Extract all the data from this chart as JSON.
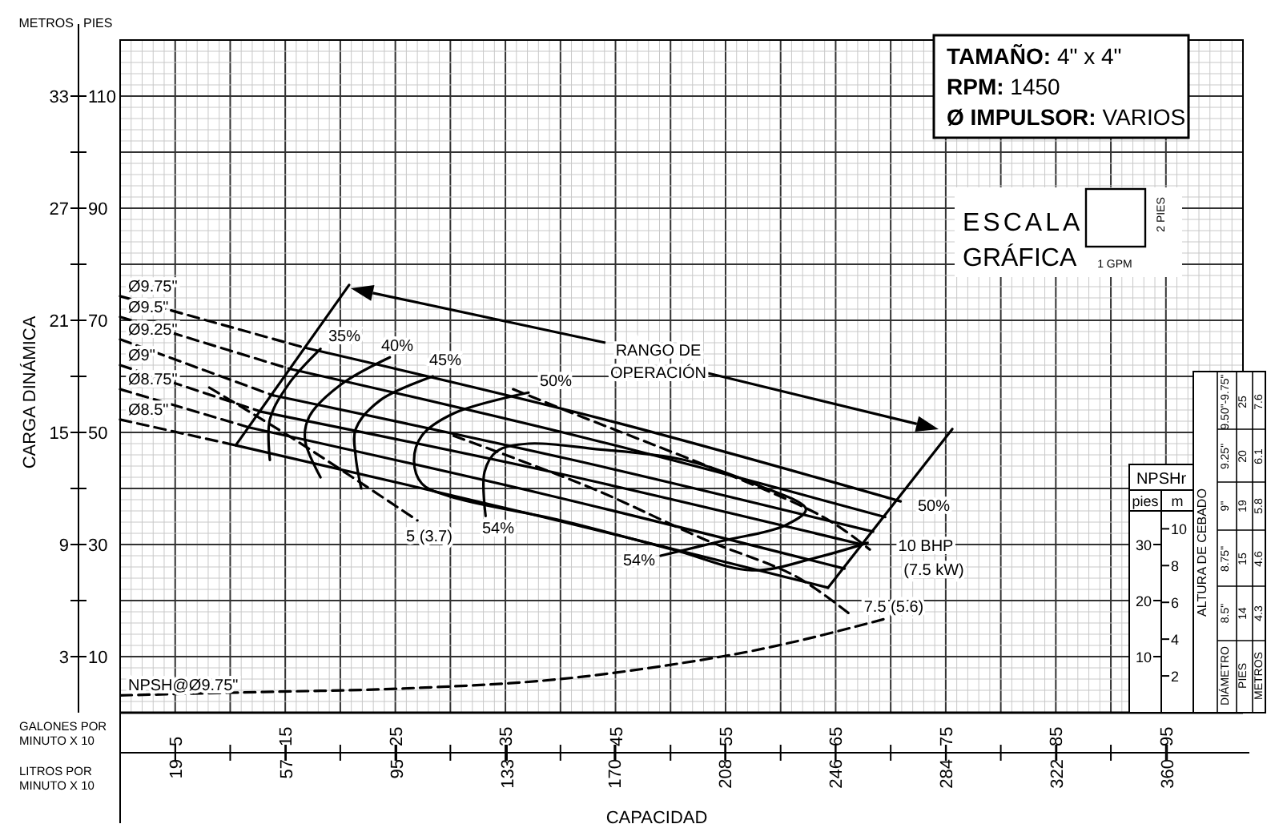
{
  "chart_data": {
    "type": "line",
    "xlabel": "CAPACIDAD",
    "y2label": "CARGA DINÁMICA",
    "y3label": "m",
    "xlim": [
      0,
      102
    ],
    "ylim": [
      0,
      120
    ],
    "x2lim": [
      0,
      386.1
    ],
    "y2lim": [
      0,
      36
    ],
    "y3lim": [
      0,
      36.58
    ],
    "xticks": [
      5,
      {
        "value": 10,
        "label": null
      },
      15,
      {
        "value": 20,
        "label": null
      },
      25,
      {
        "value": 30,
        "label": null
      },
      35,
      {
        "value": 40,
        "label": null
      },
      45,
      {
        "value": 50,
        "label": null
      },
      55,
      {
        "value": 60,
        "label": null
      },
      65,
      {
        "value": 70,
        "label": null
      },
      75,
      {
        "value": 80,
        "label": null
      },
      85,
      {
        "value": 90,
        "label": null
      },
      95
    ],
    "x2ticks": [
      19,
      57,
      95,
      133,
      170,
      208,
      246,
      284,
      322,
      360
    ],
    "yticks": [
      10,
      {
        "value": 20,
        "label": null
      },
      30,
      {
        "value": 40,
        "label": null
      },
      50,
      {
        "value": 60,
        "label": null
      },
      70,
      {
        "value": 80,
        "label": null
      },
      90,
      {
        "value": 100,
        "label": null
      },
      110
    ],
    "y2ticks": [
      3,
      9,
      15,
      21,
      27,
      33
    ],
    "y3ticks": [
      2,
      4,
      6,
      8,
      10
    ],
    "grid": true,
    "line_style": "solid",
    "series": [
      {
        "name": "Ø9.75\"",
        "line_style": "dashed",
        "color": "#000000",
        "x": [
          0,
          16.8
        ],
        "values": [
          74.3,
          65.1
        ]
      },
      {
        "name": "Ø9.5\"",
        "line_style": "dashed",
        "color": "#000000",
        "x": [
          0,
          15.3
        ],
        "values": [
          70.6,
          61.4
        ]
      },
      {
        "name": "Ø9.25\"",
        "line_style": "dashed",
        "color": "#000000",
        "x": [
          0,
          13.9
        ],
        "values": [
          66.6,
          56.6
        ]
      },
      {
        "name": "Ø9\"",
        "line_style": "dashed",
        "color": "#000000",
        "x": [
          0,
          12.8
        ],
        "values": [
          62.0,
          53.7
        ]
      },
      {
        "name": "Ø8.75\"",
        "line_style": "dashed",
        "color": "#000000",
        "x": [
          0,
          11.7
        ],
        "values": [
          57.7,
          50.9
        ]
      },
      {
        "name": "Ø8.5\"",
        "line_style": "dashed",
        "color": "#000000",
        "x": [
          0,
          10.5
        ],
        "values": [
          52.3,
          47.7
        ]
      },
      {
        "color": "#000000",
        "x": [
          16.8,
          44,
          70.9
        ],
        "values": [
          65.1,
          52.3,
          37.7
        ]
      },
      {
        "color": "#000000",
        "x": [
          15.3,
          42.5,
          69.5
        ],
        "values": [
          61.4,
          48.9,
          34.9
        ]
      },
      {
        "color": "#000000",
        "x": [
          13.9,
          41.1,
          68.4
        ],
        "values": [
          56.6,
          45.1,
          32.3
        ]
      },
      {
        "color": "#000000",
        "x": [
          12.8,
          40.0,
          67.4
        ],
        "values": [
          53.7,
          42.6,
          30.0
        ]
      },
      {
        "color": "#000000",
        "x": [
          11.7,
          38.7,
          65.8
        ],
        "values": [
          50.9,
          38.9,
          25.7
        ]
      },
      {
        "color": "#000000",
        "x": [
          10.5,
          37.4,
          64.3
        ],
        "values": [
          47.7,
          35.4,
          22.3
        ]
      },
      {
        "color": "#000000",
        "x": [
          10.5,
          20.8
        ],
        "values": [
          47.7,
          76.3
        ]
      },
      {
        "color": "#000000",
        "x": [
          64.3,
          75.6
        ],
        "values": [
          22.3,
          50.6
        ]
      },
      {
        "color": "#000000",
        "x": [
          18.2,
          15.3,
          13.6,
          13.6
        ],
        "values": [
          64.9,
          58.6,
          52.3,
          45.1
        ]
      },
      {
        "color": "#000000",
        "x": [
          24.5,
          20.1,
          17.2,
          16.8,
          18.2
        ],
        "values": [
          63.4,
          58.6,
          52.9,
          48.6,
          42.0
        ]
      },
      {
        "color": "#000000",
        "x": [
          28.4,
          23.6,
          21.4,
          21.4,
          21.9
        ],
        "values": [
          60.0,
          55.7,
          50.6,
          45.7,
          40.0
        ]
      },
      {
        "color": "#000000",
        "x": [
          37.1,
          30.3,
          27.4,
          26.7,
          27.4,
          29.9,
          40.0,
          50.2,
          57.4,
          63.3,
          67.9
        ],
        "values": [
          57.1,
          53.4,
          49.4,
          44.9,
          40.9,
          38.6,
          34.3,
          29.1,
          25.4,
          27.7,
          30.3
        ]
      },
      {
        "color": "#000000",
        "x": [
          33.2,
          33.1,
          34.2,
          37.1,
          42.9,
          51.2,
          57.9,
          62.3,
          60.4,
          54.6,
          49.1
        ],
        "values": [
          35.1,
          42.9,
          46.6,
          48.0,
          47.1,
          45.1,
          40.6,
          36.3,
          33.4,
          30.6,
          28.0
        ]
      },
      {
        "line_style": "dashed",
        "color": "#000000",
        "x": [
          8.1,
          15.3,
          21.1,
          27.0
        ],
        "values": [
          58.0,
          49.4,
          42.0,
          34.3
        ]
      },
      {
        "line_style": "dashed",
        "color": "#000000",
        "x": [
          30.3,
          42.9,
          53.1,
          61.4,
          66.6
        ],
        "values": [
          49.4,
          40.0,
          30.9,
          24.3,
          17.1
        ]
      },
      {
        "line_style": "dashed",
        "color": "#000000",
        "x": [
          35.7,
          40.0,
          63.7,
          68.1
        ],
        "values": [
          57.7,
          54.3,
          35.1,
          29.1
        ]
      },
      {
        "name": "NPSH@Ø9.75\"",
        "line_style": "dashed",
        "color": "#000000",
        "x": [
          0.06,
          13.1,
          25.5,
          40.0,
          54.6,
          61.8,
          69.8
        ],
        "values": [
          3.1,
          3.7,
          4.3,
          6.0,
          10.0,
          12.9,
          16.9
        ]
      }
    ],
    "annotations": [
      "METROS",
      "PIES",
      "GALONES POR MINUTO X 10",
      "LITROS POR MINUTO X 10",
      "TAMAÑO: 4\" x 4\"",
      "RPM: 1450",
      "Ø IMPULSOR: VARIOS",
      "ESCALA",
      "GRÁFICA",
      "2 PIES",
      "1 GPM",
      "RANGO DE",
      "OPERACIÓN",
      "NPSHr",
      "ALTURA DE CEBADO",
      "DIÁMETRO",
      "PIES",
      "METROS",
      "9.50\"-9.75\"",
      "25",
      "7.6",
      "9.25\"",
      "20",
      "6.1",
      "9\"",
      "19",
      "5.8",
      "8.75\"",
      "15",
      "4.6",
      "8.5\"",
      "14",
      "4.3",
      "35%",
      "40%",
      "45%",
      "50%",
      "54%",
      "5 (3.7)",
      "54%",
      "50%",
      "10 BHP",
      "(7.5 kW)",
      "7.5 (5.6)",
      "pies",
      "10",
      "20",
      "30"
    ]
  }
}
